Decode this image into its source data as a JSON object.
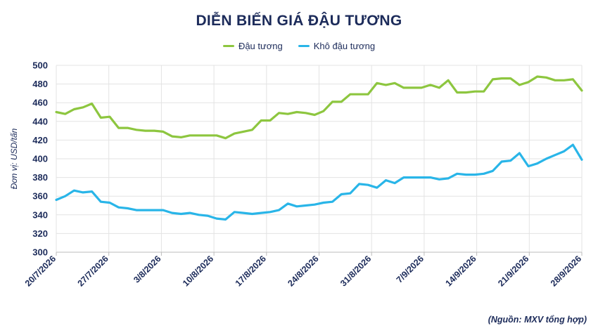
{
  "chart_data": {
    "type": "line",
    "title": "DIỄN BIẾN GIÁ ĐẬU TƯƠNG",
    "ylabel": "Đơn vị: USD/tấn",
    "xlabel": "",
    "ylim": [
      300,
      500
    ],
    "y_ticks": [
      300,
      320,
      340,
      360,
      380,
      400,
      420,
      440,
      460,
      480,
      500
    ],
    "x_tick_labels": [
      "20/7/2026",
      "27/7/2026",
      "3/8/2026",
      "10/8/2026",
      "17/8/2026",
      "24/8/2026",
      "31/8/2026",
      "7/9/2026",
      "14/9/2026",
      "21/9/2026",
      "28/9/2026"
    ],
    "grid": true,
    "legend_position": "top-center",
    "series": [
      {
        "name": "Đậu tương",
        "color": "#8dc63f",
        "values": [
          450,
          448,
          453,
          455,
          459,
          444,
          445,
          433,
          433,
          431,
          430,
          430,
          429,
          424,
          423,
          425,
          425,
          425,
          425,
          422,
          427,
          429,
          431,
          441,
          441,
          449,
          448,
          450,
          449,
          447,
          451,
          461,
          461,
          469,
          469,
          469,
          481,
          479,
          481,
          476,
          476,
          476,
          479,
          476,
          484,
          471,
          471,
          472,
          472,
          485,
          486,
          486,
          479,
          482,
          488,
          487,
          484,
          484,
          485,
          473
        ]
      },
      {
        "name": "Khô đậu tương",
        "color": "#29b5e8",
        "values": [
          356,
          360,
          366,
          364,
          365,
          354,
          353,
          348,
          347,
          345,
          345,
          345,
          345,
          342,
          341,
          342,
          340,
          339,
          336,
          335,
          343,
          342,
          341,
          342,
          343,
          345,
          352,
          349,
          350,
          351,
          353,
          354,
          362,
          363,
          373,
          372,
          369,
          377,
          374,
          380,
          380,
          380,
          380,
          378,
          379,
          384,
          383,
          383,
          384,
          387,
          397,
          398,
          406,
          392,
          395,
          400,
          404,
          408,
          415,
          399
        ]
      }
    ]
  },
  "source_note": "(Nguồn: MXV tổng hợp)"
}
